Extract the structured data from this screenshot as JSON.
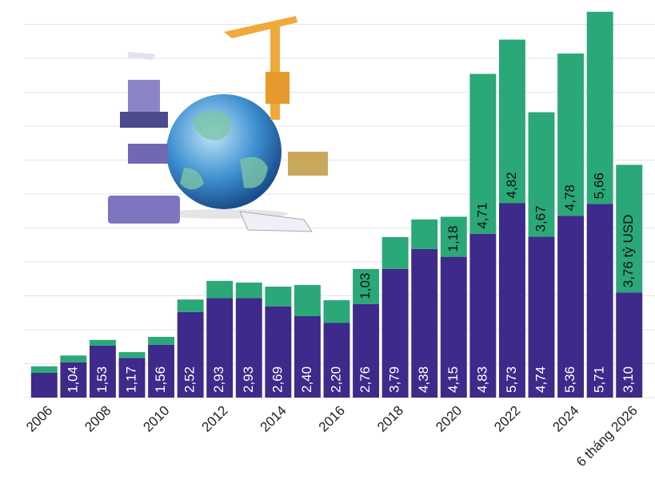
{
  "chart_data": {
    "type": "stacked_bar",
    "categories": [
      "2006",
      null,
      "2008",
      null,
      "2010",
      null,
      "2012",
      null,
      "2014",
      null,
      "2016",
      null,
      "2018",
      null,
      "2020",
      null,
      "2022",
      null,
      "2024",
      null,
      "6 tháng 2026"
    ],
    "series": [
      {
        "color": "#3e2a8a",
        "values": [
          0.73,
          1.04,
          1.53,
          1.17,
          1.56,
          2.52,
          2.93,
          2.93,
          2.69,
          2.4,
          2.2,
          2.76,
          3.79,
          4.38,
          4.15,
          4.83,
          5.73,
          4.74,
          5.36,
          5.71,
          3.1
        ],
        "value_labels": [
          null,
          "1,04",
          "1,53",
          "1,17",
          "1,56",
          "2,52",
          "2,93",
          "2,93",
          "2,69",
          "2,40",
          "2,20",
          "2,76",
          "3,79",
          "4,38",
          "4,15",
          "4,83",
          "5,73",
          "4,74",
          "5,36",
          "5,71",
          "3,10"
        ]
      },
      {
        "color": "#2ba877",
        "values": [
          0.19,
          0.2,
          0.17,
          0.17,
          0.23,
          0.37,
          0.51,
          0.46,
          0.58,
          0.92,
          0.67,
          1.03,
          0.94,
          0.87,
          1.18,
          4.71,
          4.82,
          3.67,
          4.78,
          5.66,
          3.76
        ],
        "value_labels": [
          null,
          null,
          null,
          null,
          null,
          null,
          null,
          null,
          null,
          null,
          null,
          "1,03",
          null,
          null,
          "1,18",
          "4,71",
          "4,82",
          "3,67",
          "4,78",
          "5,66",
          "3,76 tỷ USD"
        ]
      }
    ],
    "ylim": [
      0,
      11.5
    ],
    "yticks": [
      0,
      1,
      2,
      3,
      4,
      5,
      6,
      7,
      8,
      9,
      10,
      11
    ],
    "grid": true
  }
}
